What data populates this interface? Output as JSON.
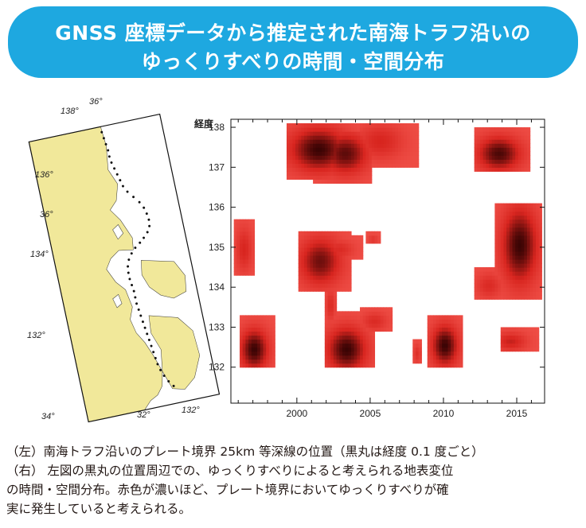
{
  "title": {
    "line1": "GNSS 座標データから推定された南海トラフ沿いの",
    "line2": "ゆっくりすべりの時間・空間分布"
  },
  "map": {
    "lon_ticks": [
      "138°",
      "136°",
      "134°",
      "132°",
      "132°",
      "32°",
      "34°"
    ],
    "lat_ticks": [
      "36°",
      "36°"
    ],
    "land_color": "#f1e89a",
    "dot_color": "#111111"
  },
  "chart_data": {
    "type": "heatmap",
    "ylabel": "経度",
    "xlim": [
      1995.5,
      2016.9
    ],
    "ylim": [
      131.1,
      138.2
    ],
    "xticks": [
      2000,
      2005,
      2010,
      2015
    ],
    "yticks": [
      132,
      133,
      134,
      135,
      136,
      137,
      138
    ],
    "color_scale": [
      "#ffffff",
      "#f2544c",
      "#d8251f",
      "#3a0404"
    ],
    "events": [
      {
        "t0": 1999.3,
        "t1": 2004.3,
        "lon0": 136.6,
        "lon1": 138.0,
        "peak_t": 2001.4,
        "peak_lon": 137.4,
        "peak": 1.0
      },
      {
        "t0": 2004.3,
        "t1": 2008.2,
        "lon0": 136.9,
        "lon1": 138.0,
        "peak_t": 2005.6,
        "peak_lon": 137.6,
        "peak": 0.55
      },
      {
        "t0": 2001.0,
        "t1": 2005.0,
        "lon0": 136.5,
        "lon1": 137.8,
        "peak_t": 2003.2,
        "peak_lon": 137.3,
        "peak": 0.9
      },
      {
        "t0": 2012.0,
        "t1": 2015.8,
        "lon0": 136.8,
        "lon1": 137.9,
        "peak_t": 2013.7,
        "peak_lon": 137.3,
        "peak": 0.95
      },
      {
        "t0": 2000.0,
        "t1": 2003.6,
        "lon0": 133.8,
        "lon1": 135.3,
        "peak_t": 2001.5,
        "peak_lon": 134.6,
        "peak": 0.85
      },
      {
        "t0": 2002.0,
        "t1": 2004.5,
        "lon0": 134.6,
        "lon1": 135.2,
        "peak_t": 2002.8,
        "peak_lon": 134.9,
        "peak": 0.5
      },
      {
        "t0": 2001.8,
        "t1": 2002.6,
        "lon0": 133.0,
        "lon1": 134.0,
        "peak_t": 2002.2,
        "peak_lon": 133.5,
        "peak": 0.5
      },
      {
        "t0": 2013.5,
        "t1": 2016.6,
        "lon0": 133.6,
        "lon1": 136.0,
        "peak_t": 2015.1,
        "peak_lon": 135.0,
        "peak": 1.0
      },
      {
        "t0": 2012.0,
        "t1": 2014.2,
        "lon0": 133.6,
        "lon1": 134.4,
        "peak_t": 2013.0,
        "peak_lon": 134.0,
        "peak": 0.5
      },
      {
        "t0": 1995.6,
        "t1": 1997.0,
        "lon0": 134.2,
        "lon1": 135.6,
        "peak_t": 1996.3,
        "peak_lon": 134.9,
        "peak": 0.55
      },
      {
        "t0": 1996.0,
        "t1": 1998.4,
        "lon0": 131.9,
        "lon1": 133.2,
        "peak_t": 1997.0,
        "peak_lon": 132.4,
        "peak": 1.0
      },
      {
        "t0": 2001.8,
        "t1": 2005.2,
        "lon0": 131.9,
        "lon1": 133.3,
        "peak_t": 2003.3,
        "peak_lon": 132.4,
        "peak": 1.0
      },
      {
        "t0": 2004.3,
        "t1": 2006.5,
        "lon0": 132.8,
        "lon1": 133.4,
        "peak_t": 2005.2,
        "peak_lon": 133.1,
        "peak": 0.5
      },
      {
        "t0": 2008.9,
        "t1": 2011.2,
        "lon0": 131.9,
        "lon1": 133.2,
        "peak_t": 2010.0,
        "peak_lon": 132.5,
        "peak": 1.0
      },
      {
        "t0": 2013.8,
        "t1": 2016.5,
        "lon0": 132.3,
        "lon1": 132.9,
        "peak_t": 2014.5,
        "peak_lon": 132.6,
        "peak": 0.6
      },
      {
        "t0": 2007.8,
        "t1": 2008.5,
        "lon0": 132.0,
        "lon1": 132.6,
        "peak_t": 2008.1,
        "peak_lon": 132.3,
        "peak": 0.45
      },
      {
        "t0": 2004.7,
        "t1": 2005.6,
        "lon0": 135.0,
        "lon1": 135.3,
        "peak_t": 2005.1,
        "peak_lon": 135.15,
        "peak": 0.4
      }
    ]
  },
  "caption": {
    "line1": "（左）南海トラフ沿いのプレート境界 25km 等深線の位置（黒丸は経度 0.1 度ごと）",
    "line2": "（右） 左図の黒丸の位置周辺での、ゆっくりすべりによると考えられる地表変位",
    "line3": "の時間・空間分布。赤色が濃いほど、プレート境界においてゆっくりすべりが確",
    "line4": "実に発生していると考えられる。"
  }
}
